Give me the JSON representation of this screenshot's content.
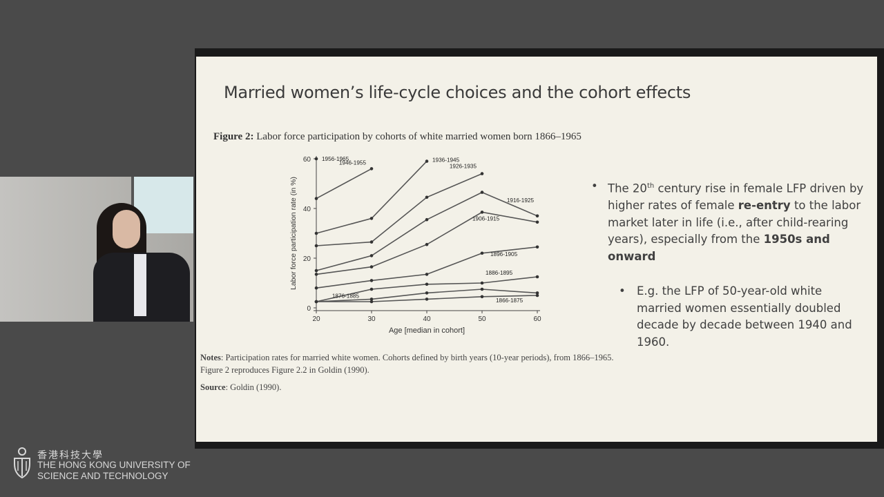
{
  "slide": {
    "title": "Married women’s life-cycle choices and the cohort effects",
    "figure_label": "Figure 2:",
    "figure_caption": "Labor force participation by cohorts of white married women born 1866–1965",
    "bullet1": {
      "t1": "The 20",
      "sup": "th",
      "t2": " century rise in female LFP driven by higher rates of female ",
      "b1": "re-entry",
      "t3": " to the labor market later in life (i.e., after child-rearing years), especially from the ",
      "b2": "1950s and onward"
    },
    "bullet2": "E.g. the LFP of 50-year-old white married women essentially doubled decade by decade between 1940 and 1960.",
    "notes_label": "Notes",
    "notes_text": ": Participation rates for married white women. Cohorts defined by birth years (10-year periods), from 1866–1965. Figure 2 reproduces Figure 2.2 in Goldin (1990).",
    "source_label": "Source",
    "source_text": ": Goldin (1990)."
  },
  "chart_data": {
    "type": "line",
    "title": "",
    "xlabel": "Age [median in cohort]",
    "ylabel": "Labor force participation rate (in %)",
    "xlim": [
      20,
      60
    ],
    "ylim": [
      0,
      60
    ],
    "x_ticks": [
      20,
      30,
      40,
      50,
      60
    ],
    "y_ticks": [
      0,
      20,
      40,
      60
    ],
    "grid": false,
    "series": [
      {
        "name": "1956-1965",
        "x": [
          20
        ],
        "y": [
          60
        ]
      },
      {
        "name": "1946-1955",
        "x": [
          20,
          30
        ],
        "y": [
          44,
          56
        ]
      },
      {
        "name": "1936-1945",
        "x": [
          20,
          30,
          40
        ],
        "y": [
          30,
          36,
          59
        ]
      },
      {
        "name": "1926-1935",
        "x": [
          20,
          30,
          40,
          50
        ],
        "y": [
          25,
          26.5,
          44.5,
          54
        ]
      },
      {
        "name": "1916-1925",
        "x": [
          20,
          30,
          40,
          50,
          60
        ],
        "y": [
          15,
          21,
          35.5,
          46.5,
          37
        ]
      },
      {
        "name": "1906-1915",
        "x": [
          20,
          30,
          40,
          50,
          60
        ],
        "y": [
          13.5,
          16.5,
          25.5,
          38.5,
          34.5
        ]
      },
      {
        "name": "1896-1905",
        "x": [
          20,
          30,
          40,
          50,
          60
        ],
        "y": [
          8,
          11,
          13.5,
          22,
          24.5
        ]
      },
      {
        "name": "1886-1895",
        "x": [
          20,
          30,
          40,
          50,
          60
        ],
        "y": [
          2.5,
          7.5,
          9.5,
          10,
          12.5
        ]
      },
      {
        "name": "1876-1885",
        "x": [
          20,
          30,
          40,
          50,
          60
        ],
        "y": [
          2.5,
          3.5,
          6,
          7.5,
          6
        ]
      },
      {
        "name": "1866-1875",
        "x": [
          20,
          30,
          40,
          50,
          60
        ],
        "y": [
          2.5,
          2.5,
          3.5,
          4.5,
          5
        ]
      }
    ]
  },
  "logo": {
    "chinese": "香港科技大學",
    "line1": "THE HONG KONG UNIVERSITY OF",
    "line2": "SCIENCE AND TECHNOLOGY"
  },
  "colors": {
    "background": "#4a4a4a",
    "slide": "#f3f1e8",
    "line": "#555555"
  }
}
